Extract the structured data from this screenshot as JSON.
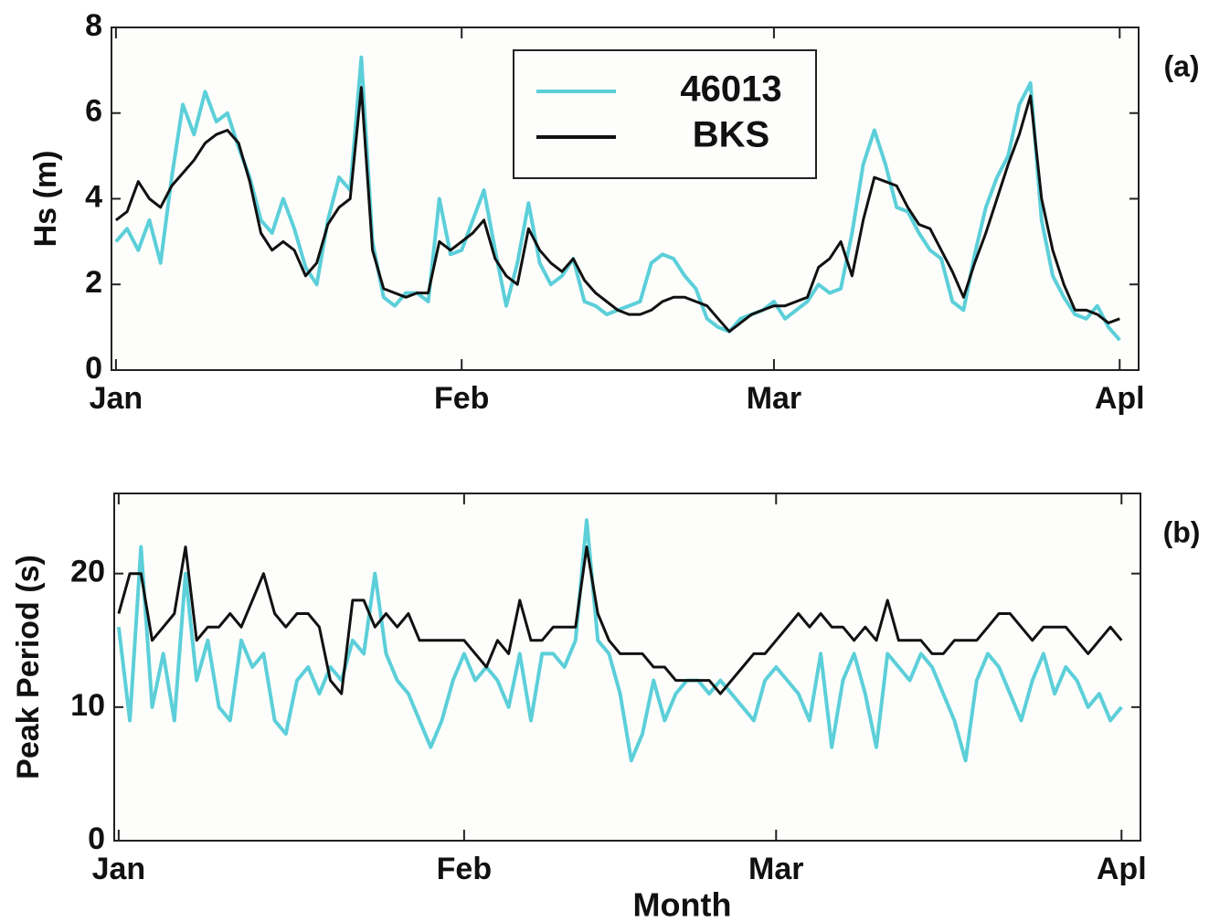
{
  "chart_data": [
    {
      "type": "line",
      "panel_label": "(a)",
      "ylabel": "Hs (m)",
      "x": [
        0,
        1,
        2,
        3,
        4,
        5,
        6,
        7,
        8,
        9,
        10,
        11,
        12,
        13,
        14,
        15,
        16,
        17,
        18,
        19,
        20,
        21,
        22,
        23,
        24,
        25,
        26,
        27,
        28,
        29,
        30,
        31,
        32,
        33,
        34,
        35,
        36,
        37,
        38,
        39,
        40,
        41,
        42,
        43,
        44,
        45,
        46,
        47,
        48,
        49,
        50,
        51,
        52,
        53,
        54,
        55,
        56,
        57,
        58,
        59,
        60,
        61,
        62,
        63,
        64,
        65,
        66,
        67,
        68,
        69,
        70,
        71,
        72,
        73,
        74,
        75,
        76,
        77,
        78,
        79,
        80,
        81,
        82,
        83,
        84,
        85,
        86,
        87,
        88,
        89,
        90
      ],
      "xlim": [
        -0.4,
        91.7
      ],
      "xticks": [
        {
          "value": 0,
          "label": "Jan"
        },
        {
          "value": 31,
          "label": "Feb"
        },
        {
          "value": 59,
          "label": "Mar"
        },
        {
          "value": 90,
          "label": "Apl"
        }
      ],
      "ylim": [
        0,
        8
      ],
      "yticks": [
        0,
        2,
        4,
        6,
        8
      ],
      "legend": "upper center",
      "series": [
        {
          "name": "46013",
          "color": "#5ccfd9",
          "values": [
            3.0,
            3.3,
            2.8,
            3.5,
            2.5,
            4.5,
            6.2,
            5.5,
            6.5,
            5.8,
            6.0,
            5.2,
            4.5,
            3.5,
            3.2,
            4.0,
            3.3,
            2.4,
            2.0,
            3.5,
            4.5,
            4.2,
            7.3,
            3.0,
            1.7,
            1.5,
            1.8,
            1.8,
            1.6,
            4.0,
            2.7,
            2.8,
            3.5,
            4.2,
            2.8,
            1.5,
            2.5,
            3.9,
            2.5,
            2.0,
            2.2,
            2.6,
            1.6,
            1.5,
            1.3,
            1.4,
            1.5,
            1.6,
            2.5,
            2.7,
            2.6,
            2.2,
            1.9,
            1.2,
            1.0,
            0.9,
            1.2,
            1.3,
            1.4,
            1.6,
            1.2,
            1.4,
            1.6,
            2.0,
            1.8,
            1.9,
            3.2,
            4.8,
            5.6,
            4.8,
            3.8,
            3.7,
            3.2,
            2.8,
            2.6,
            1.6,
            1.4,
            2.7,
            3.8,
            4.5,
            5.0,
            6.2,
            6.7,
            3.5,
            2.2,
            1.7,
            1.3,
            1.2,
            1.5,
            1.0,
            0.7
          ]
        },
        {
          "name": "BKS",
          "color": "#111111",
          "values": [
            3.5,
            3.7,
            4.4,
            4.0,
            3.8,
            4.3,
            4.6,
            4.9,
            5.3,
            5.5,
            5.6,
            5.3,
            4.4,
            3.2,
            2.8,
            3.0,
            2.8,
            2.2,
            2.5,
            3.4,
            3.8,
            4.0,
            6.6,
            2.8,
            1.9,
            1.8,
            1.7,
            1.8,
            1.8,
            3.0,
            2.8,
            3.0,
            3.2,
            3.5,
            2.6,
            2.2,
            2.0,
            3.3,
            2.8,
            2.5,
            2.3,
            2.6,
            2.1,
            1.8,
            1.6,
            1.4,
            1.3,
            1.3,
            1.4,
            1.6,
            1.7,
            1.7,
            1.6,
            1.5,
            1.2,
            0.9,
            1.1,
            1.3,
            1.4,
            1.5,
            1.5,
            1.6,
            1.7,
            2.4,
            2.6,
            3.0,
            2.2,
            3.5,
            4.5,
            4.4,
            4.3,
            3.8,
            3.4,
            3.3,
            2.8,
            2.3,
            1.7,
            2.5,
            3.2,
            4.0,
            4.8,
            5.5,
            6.4,
            4.0,
            2.8,
            2.0,
            1.4,
            1.4,
            1.3,
            1.1,
            1.2
          ]
        }
      ]
    },
    {
      "type": "line",
      "panel_label": "(b)",
      "ylabel": "Peak Period (s)",
      "xlabel": "Month",
      "x": [
        0,
        1,
        2,
        3,
        4,
        5,
        6,
        7,
        8,
        9,
        10,
        11,
        12,
        13,
        14,
        15,
        16,
        17,
        18,
        19,
        20,
        21,
        22,
        23,
        24,
        25,
        26,
        27,
        28,
        29,
        30,
        31,
        32,
        33,
        34,
        35,
        36,
        37,
        38,
        39,
        40,
        41,
        42,
        43,
        44,
        45,
        46,
        47,
        48,
        49,
        50,
        51,
        52,
        53,
        54,
        55,
        56,
        57,
        58,
        59,
        60,
        61,
        62,
        63,
        64,
        65,
        66,
        67,
        68,
        69,
        70,
        71,
        72,
        73,
        74,
        75,
        76,
        77,
        78,
        79,
        80,
        81,
        82,
        83,
        84,
        85,
        86,
        87,
        88,
        89,
        90
      ],
      "xlim": [
        -0.4,
        91.7
      ],
      "xticks": [
        {
          "value": 0,
          "label": "Jan"
        },
        {
          "value": 31,
          "label": "Feb"
        },
        {
          "value": 59,
          "label": "Mar"
        },
        {
          "value": 90,
          "label": "Apl"
        }
      ],
      "ylim": [
        0,
        26
      ],
      "yticks": [
        0,
        10,
        20
      ],
      "series": [
        {
          "color": "#5ccfd9",
          "values": [
            16,
            9,
            22,
            10,
            14,
            9,
            20,
            12,
            15,
            10,
            9,
            15,
            13,
            14,
            9,
            8,
            12,
            13,
            11,
            13,
            12,
            15,
            14,
            20,
            14,
            12,
            11,
            9,
            7,
            9,
            12,
            14,
            12,
            13,
            12,
            10,
            14,
            9,
            14,
            14,
            13,
            15,
            24,
            15,
            14,
            11,
            6,
            8,
            12,
            9,
            11,
            12,
            12,
            11,
            12,
            11,
            10,
            9,
            12,
            13,
            12,
            11,
            9,
            14,
            7,
            12,
            14,
            11,
            7,
            14,
            13,
            12,
            14,
            13,
            11,
            9,
            6,
            12,
            14,
            13,
            11,
            9,
            12,
            14,
            11,
            13,
            12,
            10,
            11,
            9,
            10
          ]
        },
        {
          "color": "#111111",
          "values": [
            17,
            20,
            20,
            15,
            16,
            17,
            22,
            15,
            16,
            16,
            17,
            16,
            18,
            20,
            17,
            16,
            17,
            17,
            16,
            12,
            11,
            18,
            18,
            16,
            17,
            16,
            17,
            15,
            15,
            15,
            15,
            15,
            14,
            13,
            15,
            14,
            18,
            15,
            15,
            16,
            16,
            16,
            22,
            17,
            15,
            14,
            14,
            14,
            13,
            13,
            12,
            12,
            12,
            12,
            11,
            12,
            13,
            14,
            14,
            15,
            16,
            17,
            16,
            17,
            16,
            16,
            15,
            16,
            15,
            18,
            15,
            15,
            15,
            14,
            14,
            15,
            15,
            15,
            16,
            17,
            17,
            16,
            15,
            16,
            16,
            16,
            15,
            14,
            15,
            16,
            15
          ]
        }
      ]
    }
  ]
}
